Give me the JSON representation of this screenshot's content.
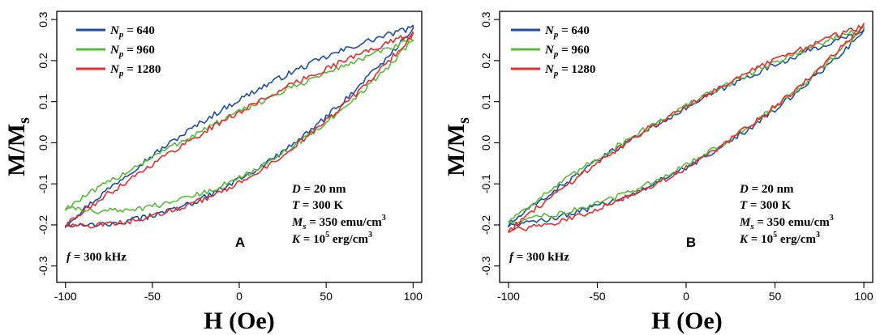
{
  "chart_data": [
    {
      "type": "line",
      "panel_label": "A",
      "xlabel": "H (Oe)",
      "ylabel": "M/M",
      "ylabel_sub": "s",
      "xlim": [
        -105,
        105
      ],
      "ylim": [
        -0.34,
        0.32
      ],
      "xticks": [
        -100,
        -50,
        0,
        50,
        100
      ],
      "xtick_labels": [
        "-100",
        "-50",
        "0",
        "50",
        "100"
      ],
      "yticks": [
        -0.3,
        -0.2,
        -0.1,
        0.0,
        0.1,
        0.2,
        0.3
      ],
      "ytick_labels": [
        "-0.3",
        "-0.2",
        "-0.1",
        "0.0",
        "0.1",
        "0.2",
        "0.3"
      ],
      "legend_position": "top-left",
      "annotations": {
        "D": "D = 20 nm",
        "T": "T = 300 K",
        "Ms": "M",
        "Ms_sub": "s",
        "Ms_val": " = 350 emu/cm",
        "Ms_exp": "3",
        "K_lbl": "K",
        "K_val": " = 10",
        "K_exp": "5",
        "K_unit": " erg/cm",
        "K_unit_exp": "3",
        "f": "f",
        "f_val": " = 300 kHz"
      },
      "series": [
        {
          "name": "640",
          "color": "#1f4fa3",
          "loop": {
            "upper_y_at_min": -0.2,
            "upper_y_at_0": 0.105,
            "lower_y_at_0": -0.09,
            "y_at_max": 0.28,
            "upper_bulge": 0.06,
            "lower_sag": -0.045
          }
        },
        {
          "name": "960",
          "color": "#5cb83f",
          "loop": {
            "upper_y_at_min": -0.16,
            "upper_y_at_0": 0.075,
            "lower_y_at_0": -0.085,
            "y_at_max": 0.25,
            "upper_bulge": 0.04,
            "lower_sag": -0.03
          }
        },
        {
          "name": "1280",
          "color": "#e03030",
          "loop": {
            "upper_y_at_min": -0.2,
            "upper_y_at_0": 0.075,
            "lower_y_at_0": -0.095,
            "y_at_max": 0.265,
            "upper_bulge": 0.045,
            "lower_sag": -0.03
          }
        }
      ]
    },
    {
      "type": "line",
      "panel_label": "B",
      "xlabel": "H (Oe)",
      "ylabel": "M/M",
      "ylabel_sub": "s",
      "xlim": [
        -105,
        105
      ],
      "ylim": [
        -0.34,
        0.32
      ],
      "xticks": [
        -100,
        -50,
        0,
        50,
        100
      ],
      "xtick_labels": [
        "-100",
        "-50",
        "0",
        "50",
        "100"
      ],
      "yticks": [
        -0.3,
        -0.2,
        -0.1,
        0.0,
        0.1,
        0.2,
        0.3
      ],
      "ytick_labels": [
        "-0.3",
        "-0.2",
        "-0.1",
        "0.0",
        "0.1",
        "0.2",
        "0.3"
      ],
      "legend_position": "top-left",
      "annotations": {
        "D": "D = 20 nm",
        "T": "T = 300 K",
        "Ms": "M",
        "Ms_sub": "s",
        "Ms_val": " = 350 emu/cm",
        "Ms_exp": "3",
        "K_lbl": "K",
        "K_val": " = 10",
        "K_exp": "5",
        "K_unit": " erg/cm",
        "K_unit_exp": "3",
        "f": "f",
        "f_val": " = 300 kHz"
      },
      "series": [
        {
          "name": "640",
          "color": "#1f4fa3",
          "loop": {
            "upper_y_at_min": -0.2,
            "upper_y_at_0": 0.085,
            "lower_y_at_0": -0.06,
            "y_at_max": 0.27,
            "upper_bulge": 0.04,
            "lower_sag": -0.03
          }
        },
        {
          "name": "960",
          "color": "#5cb83f",
          "loop": {
            "upper_y_at_min": -0.19,
            "upper_y_at_0": 0.09,
            "lower_y_at_0": -0.055,
            "y_at_max": 0.28,
            "upper_bulge": 0.045,
            "lower_sag": -0.03
          }
        },
        {
          "name": "1280",
          "color": "#e03030",
          "loop": {
            "upper_y_at_min": -0.215,
            "upper_y_at_0": 0.09,
            "lower_y_at_0": -0.06,
            "y_at_max": 0.285,
            "upper_bulge": 0.045,
            "lower_sag": -0.03
          }
        }
      ]
    }
  ]
}
